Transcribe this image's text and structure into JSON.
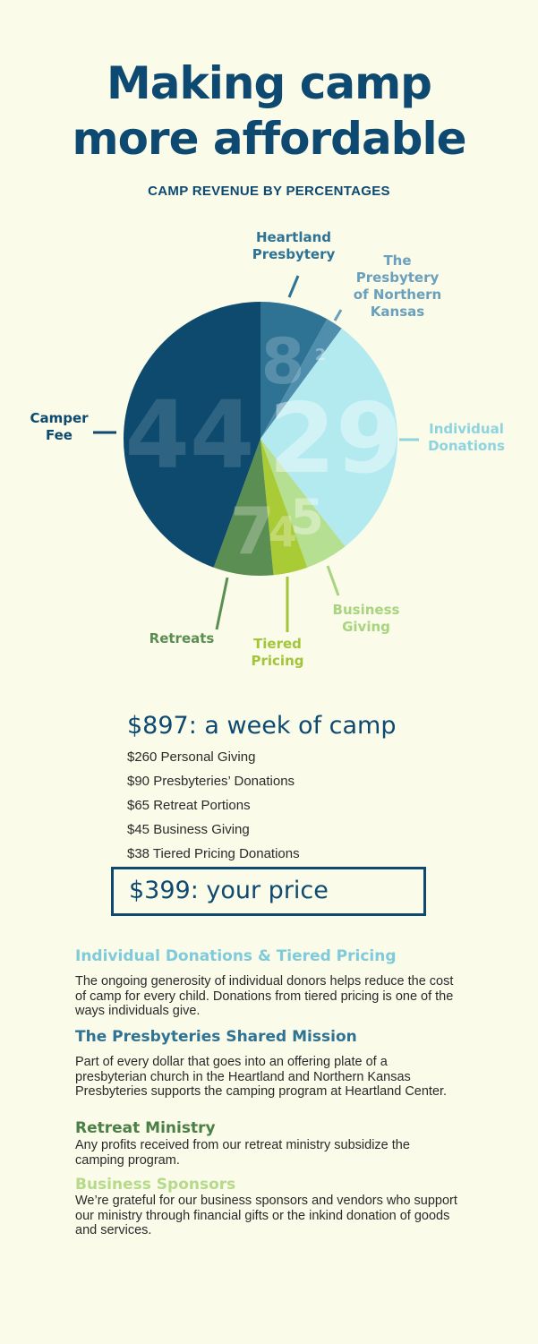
{
  "title_line1": "Making camp",
  "title_line2": "more affordable",
  "chart_data": {
    "type": "pie",
    "title": "CAMP REVENUE BY PERCENTAGES",
    "slices": [
      {
        "label": "Camper Fee",
        "label_lines": [
          "Camper",
          "Fee"
        ],
        "value": 44,
        "display": "44",
        "color": "#0d4a6e",
        "label_color": "#0d4a6e"
      },
      {
        "label": "Heartland Presbytery",
        "label_lines": [
          "Heartland",
          "Presbytery"
        ],
        "value": 8,
        "display": "8",
        "color": "#2e7294",
        "label_color": "#2e7294"
      },
      {
        "label": "The Presbytery of Northern Kansas",
        "label_lines": [
          "The",
          "Presbytery",
          "of Northern",
          "Kansas"
        ],
        "value": 2,
        "display": "2",
        "color": "#4f8fad",
        "label_color": "#6aa0bb"
      },
      {
        "label": "Individual Donations",
        "label_lines": [
          "Individual",
          "Donations"
        ],
        "value": 29,
        "display": "29",
        "color": "#b2eaf0",
        "label_color": "#8ed3e0"
      },
      {
        "label": "Business Giving",
        "label_lines": [
          "Business",
          "Giving"
        ],
        "value": 5,
        "display": "5",
        "color": "#b5df91",
        "label_color": "#a9d47f"
      },
      {
        "label": "Tiered Pricing",
        "label_lines": [
          "Tiered",
          "Pricing"
        ],
        "value": 4,
        "display": "4",
        "color": "#a9cb35",
        "label_color": "#a3c53a"
      },
      {
        "label": "Retreats",
        "label_lines": [
          "Retreats"
        ],
        "value": 7,
        "display": "7",
        "color": "#5b8e52",
        "label_color": "#5b8e52"
      }
    ]
  },
  "summary": {
    "week_cost": "$897: a week of camp",
    "items": [
      "$260 Personal Giving",
      "$90 Presbyteries’ Donations",
      "$65 Retreat Portions",
      "$45 Business Giving",
      "$38 Tiered Pricing Donations"
    ],
    "your_price": "$399: your price"
  },
  "sections": [
    {
      "heading": "Individual Donations & Tiered Pricing",
      "color": "#7fcbdb",
      "body": "The ongoing generosity of individual donors helps reduce the cost of camp for every child. Donations from tiered pricing is one of the ways individuals give."
    },
    {
      "heading": "The Presbyteries Shared Mission",
      "color": "#2e7294",
      "body": "Part of every dollar that goes into an offering plate of a presbyterian church in the Heartland and Northern Kansas Presbyteries supports the camping program at Heartland Center."
    },
    {
      "heading": "Retreat Ministry",
      "color": "#4c7f45",
      "body": "Any profits received from our retreat ministry subsidize the camping program."
    },
    {
      "heading": "Business Sponsors",
      "color": "#b6d98c",
      "body": "We’re grateful for our business sponsors and vendors who support our ministry through financial gifts or the inkind donation of goods and services."
    }
  ]
}
